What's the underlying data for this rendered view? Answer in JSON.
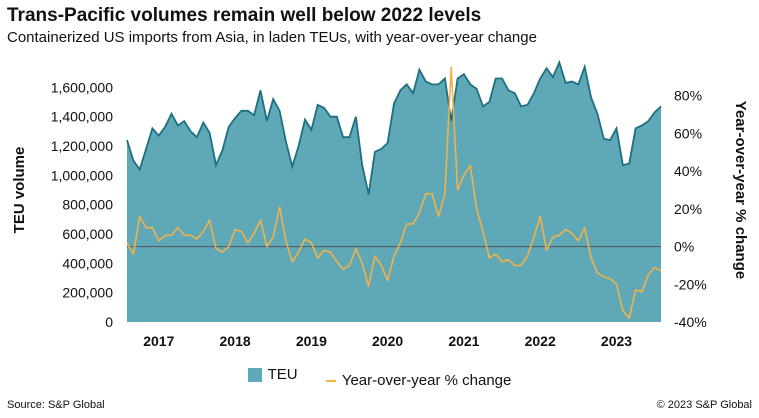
{
  "colors": {
    "area": "#5fa8b8",
    "area_line": "#1e6f80",
    "line": "#f0b24a",
    "negative": "#d22020",
    "zero_line": "#555555"
  },
  "footer": {
    "source": "Source: S&P Global",
    "copyright": "© 2023 S&P Global"
  },
  "chart_data": {
    "type": "area",
    "title": "Trans-Pacific volumes remain well below 2022 levels",
    "subtitle": "Containerized US imports from Asia, in laden TEUs, with year-over-year change",
    "ylabel": "TEU volume",
    "y2label": "Year-over-year % change",
    "ylim": [
      0,
      1800000
    ],
    "y2lim": [
      -40,
      100
    ],
    "yticks": [
      "0",
      "200,000",
      "400,000",
      "600,000",
      "800,000",
      "1,000,000",
      "1,200,000",
      "1,400,000",
      "1,600,000"
    ],
    "y2ticks": [
      {
        "value": -40,
        "label": "-40%"
      },
      {
        "value": -20,
        "label": "-20%"
      },
      {
        "value": 0,
        "label": "0%"
      },
      {
        "value": 20,
        "label": "20%"
      },
      {
        "value": 40,
        "label": "40%"
      },
      {
        "value": 60,
        "label": "60%"
      },
      {
        "value": 80,
        "label": "80%"
      }
    ],
    "xticks": [
      "2017",
      "2018",
      "2019",
      "2020",
      "2021",
      "2022",
      "2023"
    ],
    "legend": {
      "position": "bottom",
      "items": [
        "TEU",
        "Year-over-year % change"
      ]
    },
    "grid": false,
    "series": [
      {
        "name": "TEU",
        "axis": "left",
        "values": [
          1240000,
          1100000,
          1040000,
          1180000,
          1320000,
          1270000,
          1330000,
          1420000,
          1340000,
          1370000,
          1300000,
          1260000,
          1360000,
          1290000,
          1070000,
          1170000,
          1330000,
          1390000,
          1440000,
          1440000,
          1410000,
          1580000,
          1370000,
          1520000,
          1440000,
          1230000,
          1060000,
          1200000,
          1380000,
          1310000,
          1480000,
          1460000,
          1400000,
          1400000,
          1260000,
          1260000,
          1400000,
          1070000,
          870000,
          1160000,
          1180000,
          1220000,
          1490000,
          1580000,
          1620000,
          1560000,
          1720000,
          1640000,
          1620000,
          1620000,
          1660000,
          1370000,
          1660000,
          1690000,
          1620000,
          1590000,
          1470000,
          1500000,
          1660000,
          1660000,
          1580000,
          1560000,
          1470000,
          1480000,
          1560000,
          1660000,
          1730000,
          1670000,
          1770000,
          1630000,
          1640000,
          1620000,
          1740000,
          1530000,
          1420000,
          1250000,
          1240000,
          1320000,
          1070000,
          1080000,
          1320000,
          1340000,
          1370000,
          1430000,
          1470000
        ]
      },
      {
        "name": "Year-over-year % change",
        "axis": "right",
        "values": [
          2,
          -4,
          16,
          10,
          10,
          3,
          6,
          6,
          10,
          6,
          6,
          4,
          8,
          14,
          -1,
          -3,
          0,
          9,
          8,
          2,
          7,
          14,
          0,
          5,
          21,
          3,
          -8,
          -3,
          4,
          2,
          -6,
          -2,
          -3,
          -8,
          -12,
          -10,
          -1,
          -9,
          -21,
          -5,
          -10,
          -18,
          -5,
          2,
          12,
          12,
          18,
          28,
          28,
          16,
          28,
          95,
          30,
          38,
          43,
          20,
          8,
          -6,
          -4,
          -8,
          -7,
          -10,
          -10,
          -5,
          5,
          16,
          -2,
          5,
          6,
          9,
          7,
          3,
          10,
          -6,
          -14,
          -16,
          -17,
          -20,
          -34,
          -38,
          -23,
          -24,
          -15,
          -11,
          -13
        ]
      }
    ]
  }
}
